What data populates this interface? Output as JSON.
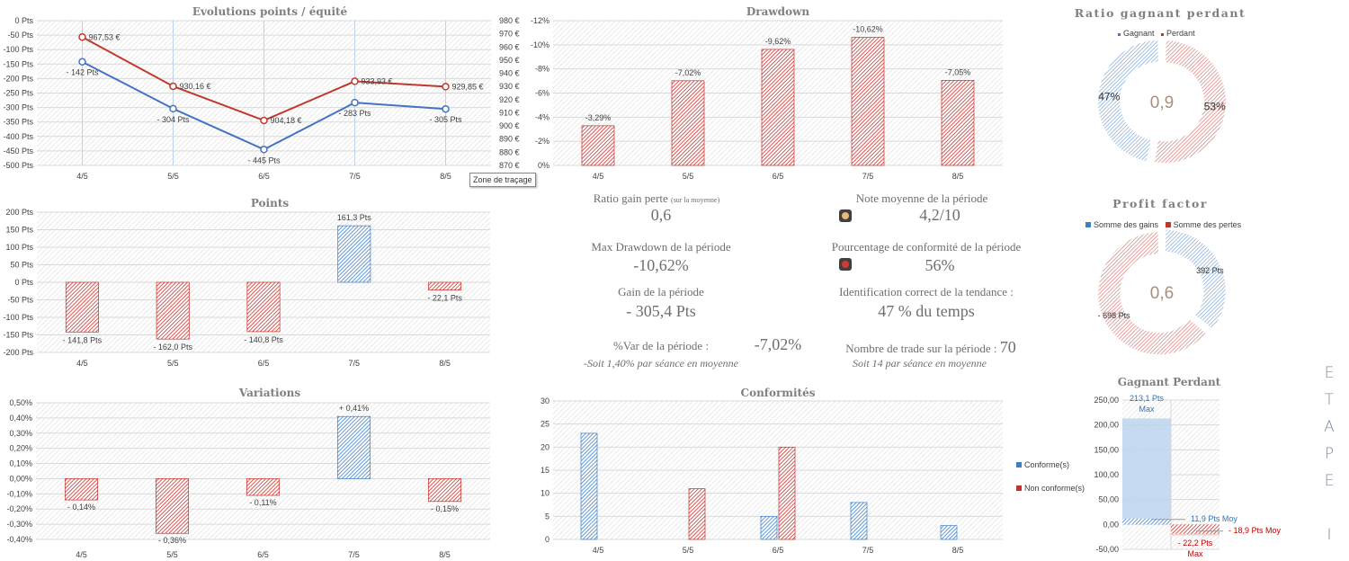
{
  "titles": {
    "evolution": "Evolutions points / équité",
    "drawdown": "Drawdown",
    "points": "Points",
    "variations": "Variations",
    "conformites": "Conformités",
    "ratio": "Ratio gagnant perdant",
    "profit": "Profit factor",
    "gagnant_perdant": "Gagnant Perdant"
  },
  "tooltip": "Zone de traçage",
  "side_label": [
    "E",
    "T",
    "A",
    "P",
    "E",
    "",
    "I"
  ],
  "stats": {
    "ratio_gain_perte_label": "Ratio gain perte",
    "ratio_gain_perte_note": "(sur la moyenne)",
    "ratio_gain_perte_value": "0,6",
    "note_label": "Note moyenne de la période",
    "note_value": "4,2/10",
    "note_light_color": "#e8b77a",
    "max_dd_label": "Max Drawdown de la période",
    "max_dd_value": "-10,62%",
    "conformite_label": "Pourcentage de conformité de la période",
    "conformite_value": "56%",
    "conformite_light_color": "#d23a33",
    "gain_label": "Gain de la période",
    "gain_value": "- 305,4 Pts",
    "tendance_label": "Identification correct de la tendance :",
    "tendance_value": "47 % du temps",
    "var_label": "%Var de la période :",
    "var_value": "-7,02%",
    "var_sub": "-Soit 1,40% par séance en moyenne",
    "trades_label": "Nombre de trade sur la période :",
    "trades_value": "70",
    "trades_sub": "Soit 14 par séance en moyenne"
  },
  "colors": {
    "blue": "#3c7fc8",
    "red": "#c8302c",
    "grid": "#d9d9d9"
  },
  "chart_data": [
    {
      "id": "evolution",
      "type": "line",
      "categories": [
        "4/5",
        "5/5",
        "6/5",
        "7/5",
        "8/5"
      ],
      "series": [
        {
          "values": [
            -142,
            -304,
            -445,
            -283,
            -305
          ],
          "labels": [
            "- 142 Pts",
            "- 304 Pts",
            "- 445 Pts",
            "- 283 Pts",
            "- 305 Pts"
          ],
          "axis": "left",
          "color": "#4472c4"
        },
        {
          "values": [
            967.53,
            930.16,
            904.18,
            933.93,
            929.85
          ],
          "labels": [
            "967,53 €",
            "930,16 €",
            "904,18 €",
            "933,93 €",
            "929,85 €"
          ],
          "axis": "right",
          "color": "#c0392b"
        }
      ],
      "ylim_left": [
        -500,
        0
      ],
      "yticks_left": [
        "0 Pts",
        "-50 Pts",
        "-100 Pts",
        "-150 Pts",
        "-200 Pts",
        "-250 Pts",
        "-300 Pts",
        "-350 Pts",
        "-400 Pts",
        "-450 Pts",
        "-500 Pts"
      ],
      "ylim_right": [
        870,
        980
      ],
      "yticks_right": [
        "980 €",
        "970 €",
        "960 €",
        "950 €",
        "940 €",
        "930 €",
        "920 €",
        "910 €",
        "900 €",
        "890 €",
        "880 €",
        "870 €"
      ],
      "grid": true
    },
    {
      "id": "drawdown",
      "type": "bar",
      "categories": [
        "4/5",
        "5/5",
        "6/5",
        "7/5",
        "8/5"
      ],
      "values": [
        -3.29,
        -7.02,
        -9.62,
        -10.62,
        -7.05
      ],
      "labels": [
        "-3,29%",
        "-7,02%",
        "-9,62%",
        "-10,62%",
        "-7,05%"
      ],
      "ylim": [
        0,
        -12
      ],
      "yticks": [
        "-12%",
        "-10%",
        "-8%",
        "-6%",
        "-4%",
        "-2%",
        "0%"
      ],
      "grid": true
    },
    {
      "id": "points",
      "type": "bar",
      "categories": [
        "4/5",
        "5/5",
        "6/5",
        "7/5",
        "8/5"
      ],
      "values": [
        -141.8,
        -162.0,
        -140.8,
        161.3,
        -22.1
      ],
      "labels": [
        "- 141,8 Pts",
        "- 162,0 Pts",
        "- 140,8 Pts",
        "161,3 Pts",
        "- 22,1 Pts"
      ],
      "ylim": [
        -200,
        200
      ],
      "yticks": [
        "200 Pts",
        "150 Pts",
        "100 Pts",
        "50 Pts",
        "0 Pts",
        "-50 Pts",
        "-100 Pts",
        "-150 Pts",
        "-200 Pts"
      ],
      "grid": true
    },
    {
      "id": "variations",
      "type": "bar",
      "categories": [
        "4/5",
        "5/5",
        "6/5",
        "7/5",
        "8/5"
      ],
      "values": [
        -0.14,
        -0.36,
        -0.11,
        0.41,
        -0.15
      ],
      "labels": [
        "- 0,14%",
        "- 0,36%",
        "- 0,11%",
        "+ 0,41%",
        "- 0,15%"
      ],
      "ylim": [
        -0.4,
        0.5
      ],
      "yticks": [
        "0,50%",
        "0,40%",
        "0,30%",
        "0,20%",
        "0,10%",
        "0,00%",
        "-0,10%",
        "-0,20%",
        "-0,30%",
        "-0,40%"
      ],
      "grid": true
    },
    {
      "id": "conformites",
      "type": "bar",
      "categories": [
        "4/5",
        "5/5",
        "6/5",
        "7/5",
        "8/5"
      ],
      "series": [
        {
          "name": "Conforme(s)",
          "values": [
            23,
            0,
            5,
            8,
            3
          ]
        },
        {
          "name": "Non conforme(s)",
          "values": [
            0,
            11,
            20,
            0,
            0
          ]
        }
      ],
      "ylim": [
        0,
        30
      ],
      "yticks": [
        "30",
        "25",
        "20",
        "15",
        "10",
        "5",
        "0"
      ],
      "legend": "right",
      "grid": true
    },
    {
      "id": "ratio",
      "type": "pie",
      "slices": [
        {
          "name": "Gagnant",
          "value": 47,
          "label": "47%"
        },
        {
          "name": "Perdant",
          "value": 53,
          "label": "53%"
        }
      ],
      "center": "0,9",
      "legend": "top"
    },
    {
      "id": "profit",
      "type": "pie",
      "slices": [
        {
          "name": "Somme des gains",
          "value": 392,
          "label": "392 Pts"
        },
        {
          "name": "Somme des pertes",
          "value": 698,
          "label": "- 698 Pts"
        }
      ],
      "center": "0,6",
      "legend": "top"
    },
    {
      "id": "gagnant_perdant",
      "type": "bar",
      "series": [
        {
          "max": 213.1,
          "moy": 11.9,
          "max_label": "213,1 Pts",
          "moy_label": "11,9 Pts Moy"
        },
        {
          "max": -22.2,
          "moy": -18.9,
          "max_label": "- 22,2 Pts",
          "moy_label": "- 18,9 Pts Moy"
        }
      ],
      "max_word": "Max",
      "ylim": [
        -50,
        250
      ],
      "yticks": [
        "250,00",
        "200,00",
        "150,00",
        "100,00",
        "50,00",
        "0,00",
        "-50,00"
      ],
      "grid": true
    }
  ]
}
